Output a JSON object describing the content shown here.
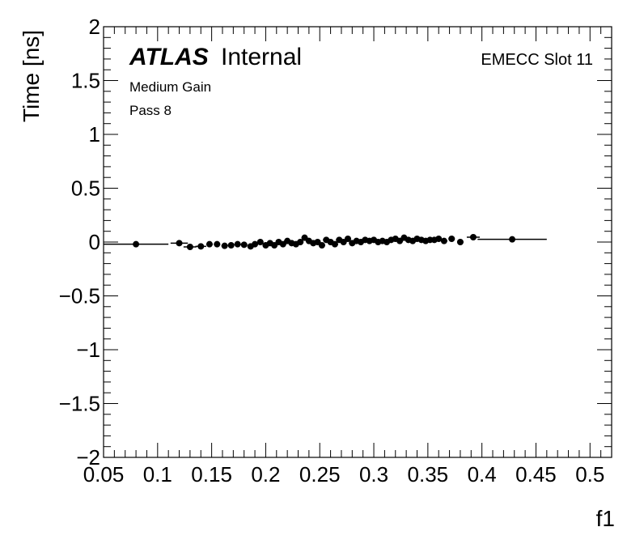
{
  "chart_data": {
    "type": "scatter",
    "xlabel": "f1",
    "ylabel": "Time [ns]",
    "xlim": [
      0.05,
      0.52
    ],
    "ylim": [
      -2,
      2
    ],
    "x_ticks": [
      0.05,
      0.1,
      0.15,
      0.2,
      0.25,
      0.3,
      0.35,
      0.4,
      0.45,
      0.5
    ],
    "x_tick_labels": [
      "0.05",
      "0.1",
      "0.15",
      "0.2",
      "0.25",
      "0.3",
      "0.35",
      "0.4",
      "0.45",
      "0.5"
    ],
    "y_ticks": [
      -2,
      -1.5,
      -1,
      -0.5,
      0,
      0.5,
      1,
      1.5,
      2
    ],
    "y_tick_labels": [
      "−2",
      "−1.5",
      "−1",
      "−0.5",
      "0",
      "0.5",
      "1",
      "1.5",
      "2"
    ],
    "grid": false,
    "annotations": {
      "atlas": "ATLAS",
      "internal": "Internal",
      "line1": "Medium Gain",
      "line2": "Pass 8",
      "slot": "EMECC Slot 11"
    },
    "points": [
      {
        "x": 0.08,
        "y": -0.02,
        "xerr": 0.03
      },
      {
        "x": 0.12,
        "y": -0.01,
        "xerr": 0.008
      },
      {
        "x": 0.13,
        "y": -0.045,
        "xerr": 0.006
      },
      {
        "x": 0.14,
        "y": -0.04,
        "xerr": 0.005
      },
      {
        "x": 0.148,
        "y": -0.02
      },
      {
        "x": 0.155,
        "y": -0.02
      },
      {
        "x": 0.162,
        "y": -0.035
      },
      {
        "x": 0.168,
        "y": -0.03
      },
      {
        "x": 0.174,
        "y": -0.02
      },
      {
        "x": 0.18,
        "y": -0.025
      },
      {
        "x": 0.186,
        "y": -0.04
      },
      {
        "x": 0.19,
        "y": -0.02
      },
      {
        "x": 0.195,
        "y": 0.0
      },
      {
        "x": 0.2,
        "y": -0.03
      },
      {
        "x": 0.204,
        "y": -0.01
      },
      {
        "x": 0.208,
        "y": -0.03
      },
      {
        "x": 0.212,
        "y": 0.0
      },
      {
        "x": 0.216,
        "y": -0.02
      },
      {
        "x": 0.22,
        "y": 0.01
      },
      {
        "x": 0.224,
        "y": -0.01
      },
      {
        "x": 0.228,
        "y": -0.02
      },
      {
        "x": 0.232,
        "y": 0.0
      },
      {
        "x": 0.236,
        "y": 0.04
      },
      {
        "x": 0.24,
        "y": 0.01
      },
      {
        "x": 0.244,
        "y": -0.01
      },
      {
        "x": 0.248,
        "y": 0.0
      },
      {
        "x": 0.252,
        "y": -0.03
      },
      {
        "x": 0.256,
        "y": 0.02
      },
      {
        "x": 0.26,
        "y": 0.0
      },
      {
        "x": 0.264,
        "y": -0.02
      },
      {
        "x": 0.268,
        "y": 0.02
      },
      {
        "x": 0.272,
        "y": 0.0
      },
      {
        "x": 0.276,
        "y": 0.03
      },
      {
        "x": 0.28,
        "y": -0.01
      },
      {
        "x": 0.284,
        "y": 0.01
      },
      {
        "x": 0.288,
        "y": 0.0
      },
      {
        "x": 0.292,
        "y": 0.02
      },
      {
        "x": 0.296,
        "y": 0.01
      },
      {
        "x": 0.3,
        "y": 0.02
      },
      {
        "x": 0.304,
        "y": 0.0
      },
      {
        "x": 0.308,
        "y": 0.01
      },
      {
        "x": 0.312,
        "y": 0.0
      },
      {
        "x": 0.316,
        "y": 0.02
      },
      {
        "x": 0.32,
        "y": 0.03
      },
      {
        "x": 0.324,
        "y": 0.01
      },
      {
        "x": 0.328,
        "y": 0.04
      },
      {
        "x": 0.332,
        "y": 0.02
      },
      {
        "x": 0.336,
        "y": 0.01
      },
      {
        "x": 0.34,
        "y": 0.03
      },
      {
        "x": 0.344,
        "y": 0.02
      },
      {
        "x": 0.348,
        "y": 0.01
      },
      {
        "x": 0.352,
        "y": 0.02
      },
      {
        "x": 0.356,
        "y": 0.02
      },
      {
        "x": 0.36,
        "y": 0.03
      },
      {
        "x": 0.365,
        "y": 0.01
      },
      {
        "x": 0.372,
        "y": 0.03
      },
      {
        "x": 0.38,
        "y": 0.0
      },
      {
        "x": 0.392,
        "y": 0.045,
        "xerr": 0.006
      },
      {
        "x": 0.428,
        "y": 0.025,
        "xerr": 0.032
      }
    ]
  }
}
